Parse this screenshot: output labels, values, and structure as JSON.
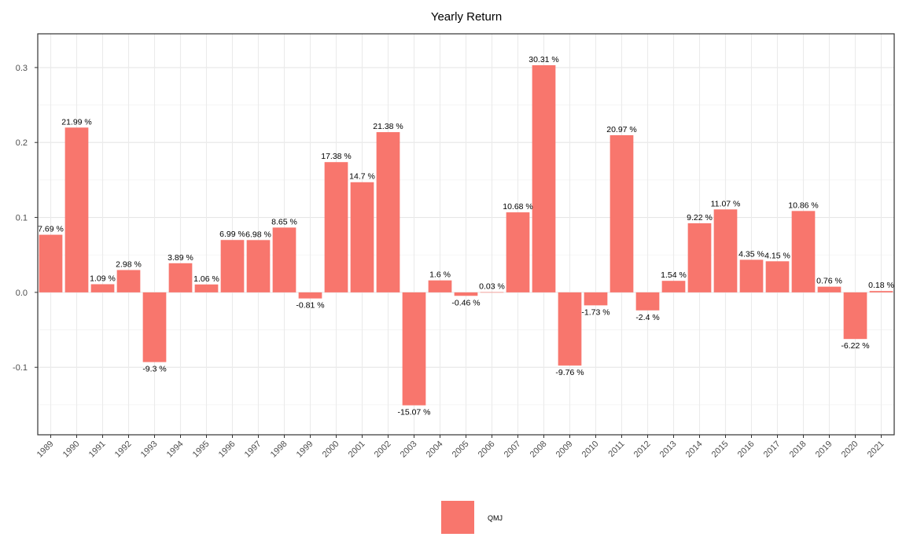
{
  "chart_data": {
    "type": "bar",
    "title": "Yearly Return",
    "xlabel": "",
    "ylabel": "",
    "ylim": [
      -0.19,
      0.345
    ],
    "yticks": [
      -0.1,
      0.0,
      0.1,
      0.2,
      0.3
    ],
    "ytick_labels": [
      "-0.1",
      "0.0",
      "0.1",
      "0.2",
      "0.3"
    ],
    "grid": true,
    "legend_position": "bottom",
    "categories": [
      "1989",
      "1990",
      "1991",
      "1992",
      "1993",
      "1994",
      "1995",
      "1996",
      "1997",
      "1998",
      "1999",
      "2000",
      "2001",
      "2002",
      "2003",
      "2004",
      "2005",
      "2006",
      "2007",
      "2008",
      "2009",
      "2010",
      "2011",
      "2012",
      "2013",
      "2014",
      "2015",
      "2016",
      "2017",
      "2018",
      "2019",
      "2020",
      "2021"
    ],
    "series": [
      {
        "name": "QMJ",
        "color": "#F8766D",
        "values": [
          0.0769,
          0.2199,
          0.0109,
          0.0298,
          -0.093,
          0.0389,
          0.0106,
          0.0699,
          0.0698,
          0.0865,
          -0.0081,
          0.1738,
          0.147,
          0.2138,
          -0.1507,
          0.016,
          -0.0046,
          0.0003,
          0.1068,
          0.3031,
          -0.0976,
          -0.0173,
          0.2097,
          -0.024,
          0.0154,
          0.0922,
          0.1107,
          0.0435,
          0.0415,
          0.1086,
          0.0076,
          -0.0622,
          0.0018
        ],
        "labels": [
          "7.69 %",
          "21.99 %",
          "1.09 %",
          "2.98 %",
          "-9.3 %",
          "3.89 %",
          "1.06 %",
          "6.99 %",
          "6.98 %",
          "8.65 %",
          "-0.81 %",
          "17.38 %",
          "14.7 %",
          "21.38 %",
          "-15.07 %",
          "1.6 %",
          "-0.46 %",
          "0.03 %",
          "10.68 %",
          "30.31 %",
          "-9.76 %",
          "-1.73 %",
          "20.97 %",
          "-2.4 %",
          "1.54 %",
          "9.22 %",
          "11.07 %",
          "4.35 %",
          "4.15 %",
          "10.86 %",
          "0.76 %",
          "-6.22 %",
          "0.18 %"
        ]
      }
    ]
  }
}
